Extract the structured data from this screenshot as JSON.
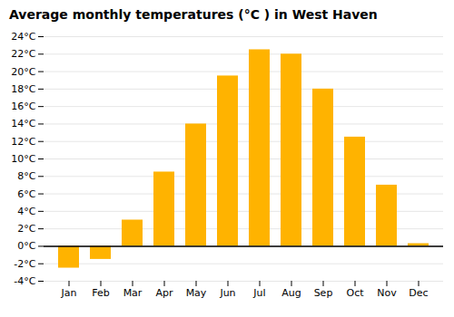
{
  "chart_data": {
    "type": "bar",
    "title": "Average monthly temperatures (°C ) in West Haven",
    "categories": [
      "Jan",
      "Feb",
      "Mar",
      "Apr",
      "May",
      "Jun",
      "Jul",
      "Aug",
      "Sep",
      "Oct",
      "Nov",
      "Dec"
    ],
    "values": [
      -2.5,
      -1.5,
      3.0,
      8.5,
      14.0,
      19.5,
      22.5,
      22.0,
      18.0,
      12.5,
      7.0,
      0.3
    ],
    "color": "#FFB300",
    "ylim": [
      -4,
      24
    ],
    "yticks": [
      {
        "value": -4,
        "label": "-4°C"
      },
      {
        "value": -2,
        "label": "-2°C"
      },
      {
        "value": 0,
        "label": "0°C"
      },
      {
        "value": 2,
        "label": "2°C"
      },
      {
        "value": 4,
        "label": "4°C"
      },
      {
        "value": 6,
        "label": "6°C"
      },
      {
        "value": 8,
        "label": "8°C"
      },
      {
        "value": 10,
        "label": "10°C"
      },
      {
        "value": 12,
        "label": "12°C"
      },
      {
        "value": 14,
        "label": "14°C"
      },
      {
        "value": 16,
        "label": "16°C"
      },
      {
        "value": 18,
        "label": "18°C"
      },
      {
        "value": 20,
        "label": "20°C"
      },
      {
        "value": 22,
        "label": "22°C"
      },
      {
        "value": 24,
        "label": "24°C"
      }
    ],
    "grid": true
  }
}
